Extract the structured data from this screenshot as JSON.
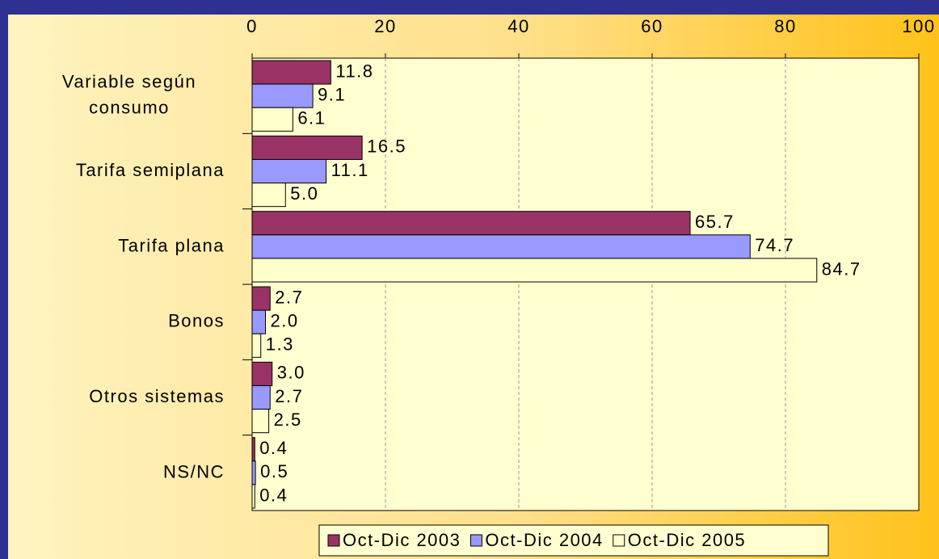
{
  "chart_data": {
    "type": "bar",
    "orientation": "horizontal",
    "categories": [
      "Variable según consumo",
      "Tarifa semiplana",
      "Tarifa plana",
      "Bonos",
      "Otros sistemas",
      "NS/NC"
    ],
    "series": [
      {
        "name": "Oct-Dic 2003",
        "color": "#993366",
        "values": [
          11.8,
          16.5,
          65.7,
          2.7,
          3.0,
          0.4
        ],
        "value_labels": [
          "11.8",
          "16.5",
          "65.7",
          "2.7",
          "3.0",
          "0.4"
        ]
      },
      {
        "name": "Oct-Dic 2004",
        "color": "#9999FF",
        "values": [
          9.1,
          11.1,
          74.7,
          2.0,
          2.7,
          0.5
        ],
        "value_labels": [
          "9.1",
          "11.1",
          "74.7",
          "2.0",
          "2.7",
          "0.5"
        ]
      },
      {
        "name": "Oct-Dic 2005",
        "color": "#FFFFCC",
        "values": [
          6.1,
          5.0,
          84.7,
          1.3,
          2.5,
          0.4
        ],
        "value_labels": [
          "6.1",
          "5.0",
          "84.7",
          "1.3",
          "2.5",
          "0.4"
        ]
      }
    ],
    "xlim": [
      0,
      100
    ],
    "xticks": [
      0,
      20,
      40,
      60,
      80,
      100
    ],
    "grid": true,
    "legend": "bottom"
  }
}
